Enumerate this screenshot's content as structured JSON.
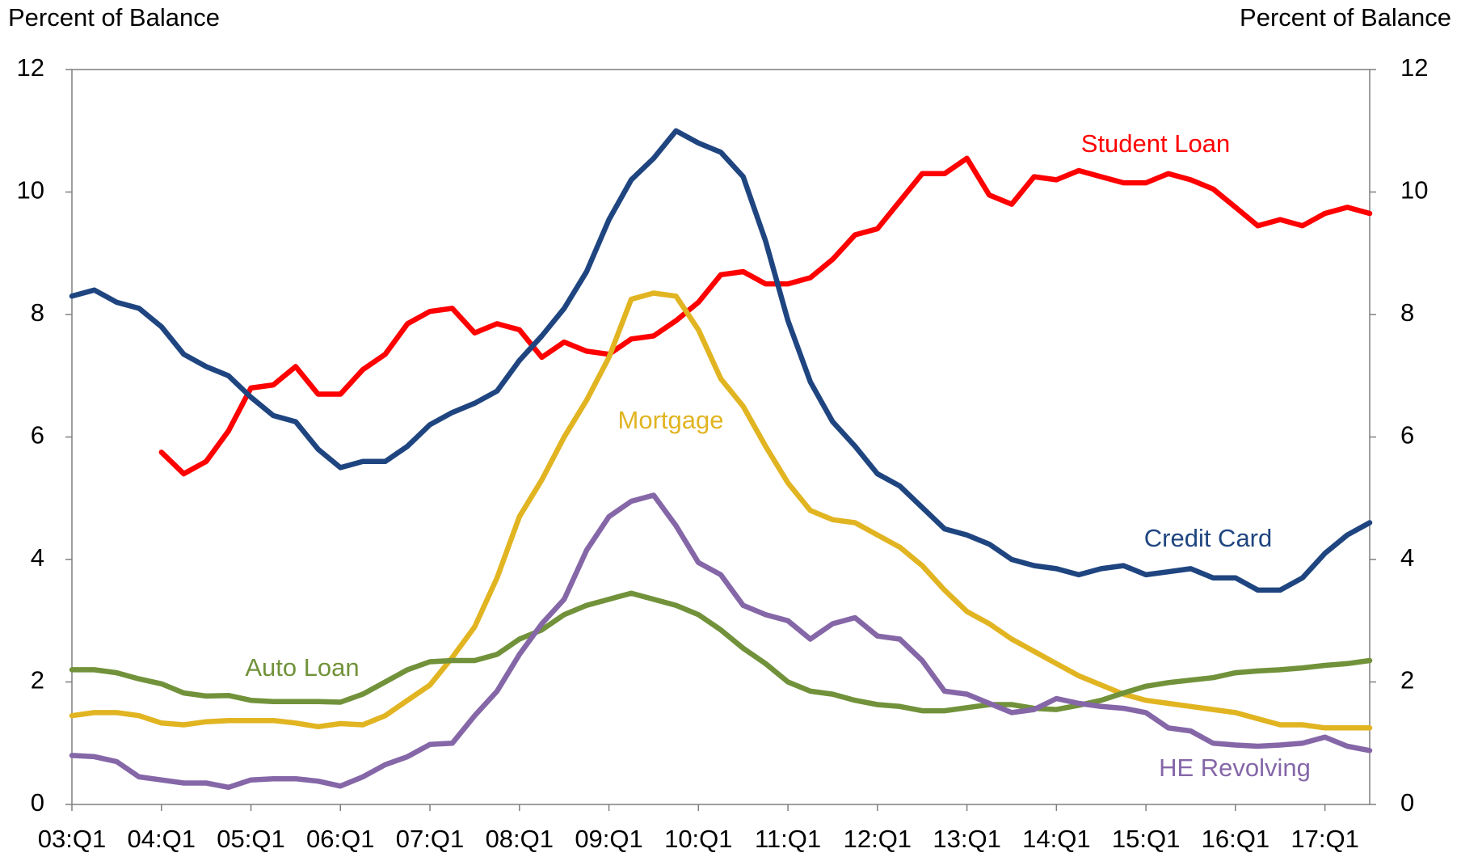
{
  "chart_data": {
    "type": "line",
    "y_label": "Percent of Balance",
    "y2_label": "Percent of Balance",
    "categories": [
      "03:Q1",
      null,
      null,
      null,
      "04:Q1",
      null,
      null,
      null,
      "05:Q1",
      null,
      null,
      null,
      "06:Q1",
      null,
      null,
      null,
      "07:Q1",
      null,
      null,
      null,
      "08:Q1",
      null,
      null,
      null,
      "09:Q1",
      null,
      null,
      null,
      "10:Q1",
      null,
      null,
      null,
      "11:Q1",
      null,
      null,
      null,
      "12:Q1",
      null,
      null,
      null,
      "13:Q1",
      null,
      null,
      null,
      "14:Q1",
      null,
      null,
      null,
      "15:Q1",
      null,
      null,
      null,
      "16:Q1",
      null,
      null,
      null,
      "17:Q1",
      null,
      null
    ],
    "ylim": [
      0,
      12
    ],
    "yticks": [
      0,
      2,
      4,
      6,
      8,
      10,
      12
    ],
    "y2lim": [
      0,
      12
    ],
    "y2ticks": [
      0,
      2,
      4,
      6,
      8,
      10,
      12
    ],
    "series": [
      {
        "name": "Student Loan",
        "color": "#ff0000",
        "values": [
          null,
          null,
          null,
          null,
          5.75,
          5.4,
          5.6,
          6.1,
          6.8,
          6.85,
          7.15,
          6.7,
          6.7,
          7.1,
          7.35,
          7.85,
          8.05,
          8.1,
          7.7,
          7.85,
          7.75,
          7.3,
          7.55,
          7.4,
          7.35,
          7.6,
          7.65,
          7.9,
          8.2,
          8.65,
          8.7,
          8.5,
          8.5,
          8.6,
          8.9,
          9.3,
          9.4,
          9.85,
          10.3,
          10.3,
          10.55,
          9.95,
          9.8,
          10.25,
          10.2,
          10.35,
          10.25,
          10.15,
          10.15,
          10.3,
          10.2,
          10.05,
          9.75,
          9.45,
          9.55,
          9.45,
          9.65,
          9.75,
          9.65
        ]
      },
      {
        "name": "Mortgage",
        "color": "#e1b421",
        "values": [
          1.45,
          1.5,
          1.5,
          1.45,
          1.33,
          1.3,
          1.35,
          1.37,
          1.37,
          1.37,
          1.33,
          1.27,
          1.32,
          1.3,
          1.45,
          1.7,
          1.95,
          2.4,
          2.9,
          3.7,
          4.7,
          5.3,
          6.0,
          6.6,
          7.3,
          8.25,
          8.35,
          8.3,
          7.75,
          6.95,
          6.5,
          5.85,
          5.25,
          4.8,
          4.65,
          4.6,
          4.4,
          4.2,
          3.9,
          3.5,
          3.15,
          2.95,
          2.7,
          2.5,
          2.3,
          2.1,
          1.95,
          1.8,
          1.7,
          1.65,
          1.6,
          1.55,
          1.5,
          1.4,
          1.3,
          1.3,
          1.25,
          1.25,
          1.25
        ]
      },
      {
        "name": "Credit Card",
        "color": "#1f4580",
        "values": [
          8.3,
          8.4,
          8.2,
          8.1,
          7.8,
          7.35,
          7.15,
          7.0,
          6.65,
          6.35,
          6.25,
          5.8,
          5.5,
          5.6,
          5.6,
          5.85,
          6.2,
          6.4,
          6.55,
          6.75,
          7.25,
          7.65,
          8.1,
          8.7,
          9.55,
          10.2,
          10.55,
          11.0,
          10.8,
          10.65,
          10.25,
          9.2,
          7.9,
          6.9,
          6.25,
          5.85,
          5.4,
          5.2,
          4.85,
          4.5,
          4.4,
          4.25,
          4.0,
          3.9,
          3.85,
          3.75,
          3.85,
          3.9,
          3.75,
          3.8,
          3.85,
          3.7,
          3.7,
          3.5,
          3.5,
          3.7,
          4.1,
          4.4,
          4.6
        ]
      },
      {
        "name": "Auto Loan",
        "color": "#71923a",
        "values": [
          2.2,
          2.2,
          2.15,
          2.05,
          1.97,
          1.82,
          1.77,
          1.78,
          1.7,
          1.68,
          1.68,
          1.68,
          1.67,
          1.8,
          2.0,
          2.2,
          2.33,
          2.35,
          2.35,
          2.45,
          2.7,
          2.85,
          3.1,
          3.25,
          3.35,
          3.45,
          3.35,
          3.25,
          3.1,
          2.85,
          2.55,
          2.3,
          2.0,
          1.85,
          1.8,
          1.7,
          1.63,
          1.6,
          1.53,
          1.53,
          1.58,
          1.63,
          1.63,
          1.57,
          1.55,
          1.62,
          1.7,
          1.82,
          1.93,
          1.99,
          2.03,
          2.07,
          2.15,
          2.18,
          2.2,
          2.23,
          2.27,
          2.3,
          2.35
        ]
      },
      {
        "name": "HE Revolving",
        "color": "#8567a8",
        "values": [
          0.8,
          0.78,
          0.7,
          0.45,
          0.4,
          0.35,
          0.35,
          0.28,
          0.4,
          0.42,
          0.42,
          0.38,
          0.3,
          0.45,
          0.65,
          0.78,
          0.98,
          1.0,
          1.45,
          1.85,
          2.45,
          2.95,
          3.35,
          4.15,
          4.7,
          4.95,
          5.05,
          4.55,
          3.95,
          3.75,
          3.25,
          3.1,
          3.0,
          2.7,
          2.95,
          3.05,
          2.75,
          2.7,
          2.35,
          1.85,
          1.8,
          1.65,
          1.5,
          1.55,
          1.73,
          1.65,
          1.6,
          1.57,
          1.5,
          1.25,
          1.2,
          1.0,
          0.97,
          0.95,
          0.97,
          1.0,
          1.1,
          0.95,
          0.88
        ]
      }
    ]
  }
}
